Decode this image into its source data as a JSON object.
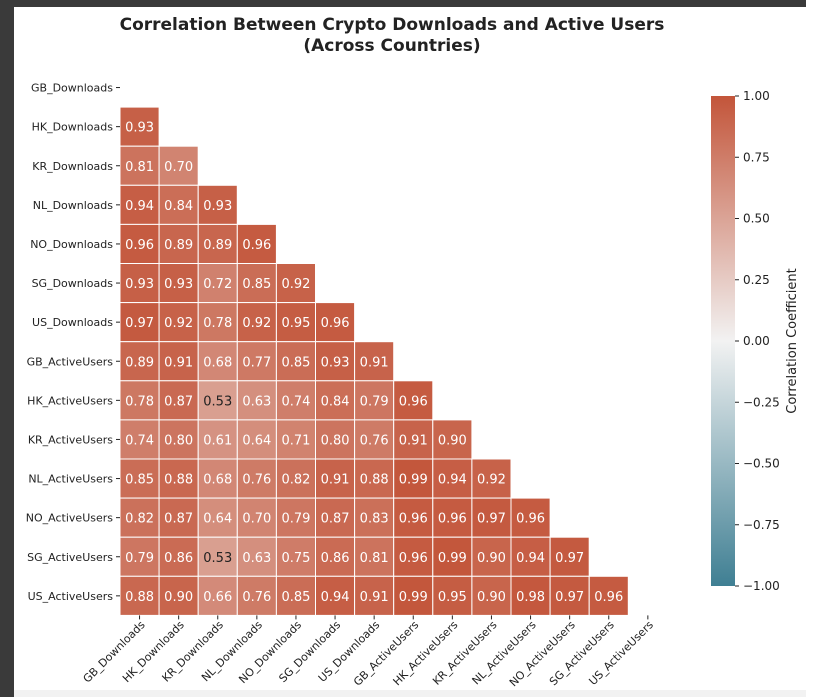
{
  "chart_data": {
    "type": "heatmap",
    "title_line1": "Correlation Between Crypto Downloads and Active Users",
    "title_line2": "(Across Countries)",
    "labels": [
      "GB_Downloads",
      "HK_Downloads",
      "KR_Downloads",
      "NL_Downloads",
      "NO_Downloads",
      "SG_Downloads",
      "US_Downloads",
      "GB_ActiveUsers",
      "HK_ActiveUsers",
      "KR_ActiveUsers",
      "NL_ActiveUsers",
      "NO_ActiveUsers",
      "SG_ActiveUsers",
      "US_ActiveUsers"
    ],
    "mask": "upper-triangle-and-diagonal",
    "values": [
      [],
      [
        0.93
      ],
      [
        0.81,
        0.7
      ],
      [
        0.94,
        0.84,
        0.93
      ],
      [
        0.96,
        0.89,
        0.89,
        0.96
      ],
      [
        0.93,
        0.93,
        0.72,
        0.85,
        0.92
      ],
      [
        0.97,
        0.92,
        0.78,
        0.92,
        0.95,
        0.96
      ],
      [
        0.89,
        0.91,
        0.68,
        0.77,
        0.85,
        0.93,
        0.91
      ],
      [
        0.78,
        0.87,
        0.53,
        0.63,
        0.74,
        0.84,
        0.79,
        0.96
      ],
      [
        0.74,
        0.8,
        0.61,
        0.64,
        0.71,
        0.8,
        0.76,
        0.91,
        0.9
      ],
      [
        0.85,
        0.88,
        0.68,
        0.76,
        0.82,
        0.91,
        0.88,
        0.99,
        0.94,
        0.92
      ],
      [
        0.82,
        0.87,
        0.64,
        0.7,
        0.79,
        0.87,
        0.83,
        0.96,
        0.96,
        0.97,
        0.96
      ],
      [
        0.79,
        0.86,
        0.53,
        0.63,
        0.75,
        0.86,
        0.81,
        0.96,
        0.99,
        0.9,
        0.94,
        0.97
      ],
      [
        0.88,
        0.9,
        0.66,
        0.76,
        0.85,
        0.94,
        0.91,
        0.99,
        0.95,
        0.9,
        0.98,
        0.97,
        0.96
      ]
    ],
    "vmin": -1.0,
    "vmax": 1.0,
    "colorbar": {
      "label": "Correlation Coefficient",
      "ticks": [
        1.0,
        0.75,
        0.5,
        0.25,
        0.0,
        -0.25,
        -0.5,
        -0.75,
        -1.0
      ],
      "tick_labels": [
        "1.00",
        "0.75",
        "0.50",
        "0.25",
        "0.00",
        "−0.25",
        "−0.50",
        "−0.75",
        "−1.00"
      ]
    },
    "colormap": {
      "negative": "#3f7f93",
      "neutral": "#f2f2f2",
      "positive": "#c3553a"
    }
  }
}
